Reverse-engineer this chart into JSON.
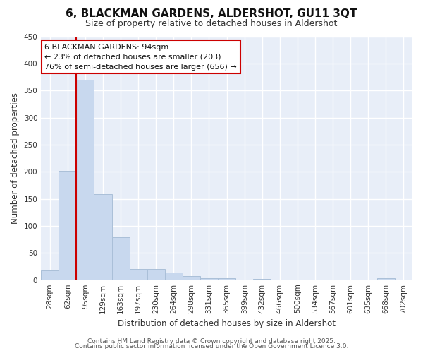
{
  "title": "6, BLACKMAN GARDENS, ALDERSHOT, GU11 3QT",
  "subtitle": "Size of property relative to detached houses in Aldershot",
  "xlabel": "Distribution of detached houses by size in Aldershot",
  "ylabel": "Number of detached properties",
  "categories": [
    "28sqm",
    "62sqm",
    "95sqm",
    "129sqm",
    "163sqm",
    "197sqm",
    "230sqm",
    "264sqm",
    "298sqm",
    "331sqm",
    "365sqm",
    "399sqm",
    "432sqm",
    "466sqm",
    "500sqm",
    "534sqm",
    "567sqm",
    "601sqm",
    "635sqm",
    "668sqm",
    "702sqm"
  ],
  "values": [
    18,
    201,
    370,
    158,
    79,
    20,
    20,
    14,
    7,
    4,
    4,
    0,
    2,
    0,
    0,
    0,
    0,
    0,
    0,
    4,
    0
  ],
  "bar_color": "#c8d8ee",
  "bar_edge_color": "#aabfd8",
  "vline_x_index": 2,
  "vline_color": "#cc0000",
  "annotation_line1": "6 BLACKMAN GARDENS: 94sqm",
  "annotation_line2": "← 23% of detached houses are smaller (203)",
  "annotation_line3": "76% of semi-detached houses are larger (656) →",
  "annotation_box_facecolor": "#ffffff",
  "annotation_box_edgecolor": "#cc0000",
  "ylim": [
    0,
    450
  ],
  "yticks": [
    0,
    50,
    100,
    150,
    200,
    250,
    300,
    350,
    400,
    450
  ],
  "fig_bg_color": "#ffffff",
  "plot_bg_color": "#e8eef8",
  "grid_color": "#ffffff",
  "footer_line1": "Contains HM Land Registry data © Crown copyright and database right 2025.",
  "footer_line2": "Contains public sector information licensed under the Open Government Licence 3.0.",
  "title_fontsize": 11,
  "subtitle_fontsize": 9,
  "axis_label_fontsize": 8.5,
  "tick_fontsize": 7.5,
  "annotation_fontsize": 8,
  "footer_fontsize": 6.5
}
